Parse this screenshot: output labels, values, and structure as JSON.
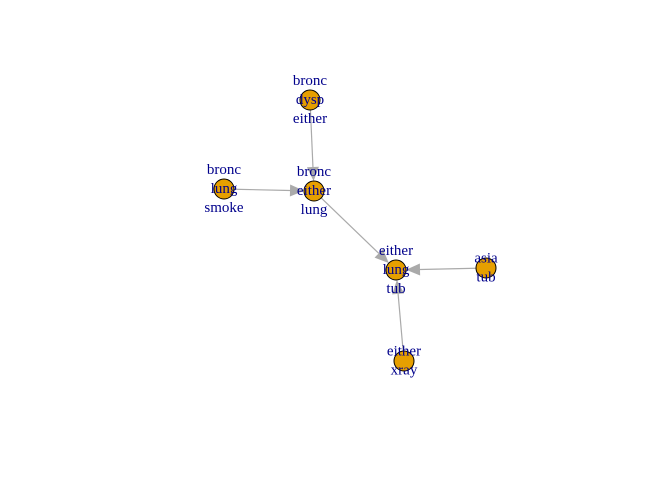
{
  "colors": {
    "node_fill": "#e69f00",
    "node_border": "#000000",
    "edge": "#aaaaaa",
    "label": "#00008b"
  },
  "nodes": [
    {
      "id": "n_bdy",
      "lines": [
        "bronc",
        "dysp",
        "either"
      ]
    },
    {
      "id": "n_bls",
      "lines": [
        "bronc",
        "lung",
        "smoke"
      ]
    },
    {
      "id": "n_bel",
      "lines": [
        "bronc",
        "either",
        "lung"
      ]
    },
    {
      "id": "n_elt",
      "lines": [
        "either",
        "lung",
        "tub"
      ]
    },
    {
      "id": "n_at",
      "lines": [
        "asia",
        "tub"
      ]
    },
    {
      "id": "n_ex",
      "lines": [
        "either",
        "xray"
      ]
    }
  ],
  "edges": [
    {
      "from": "n_bdy",
      "to": "n_bel"
    },
    {
      "from": "n_bls",
      "to": "n_bel"
    },
    {
      "from": "n_bel",
      "to": "n_elt"
    },
    {
      "from": "n_at",
      "to": "n_elt"
    },
    {
      "from": "n_ex",
      "to": "n_elt"
    }
  ]
}
